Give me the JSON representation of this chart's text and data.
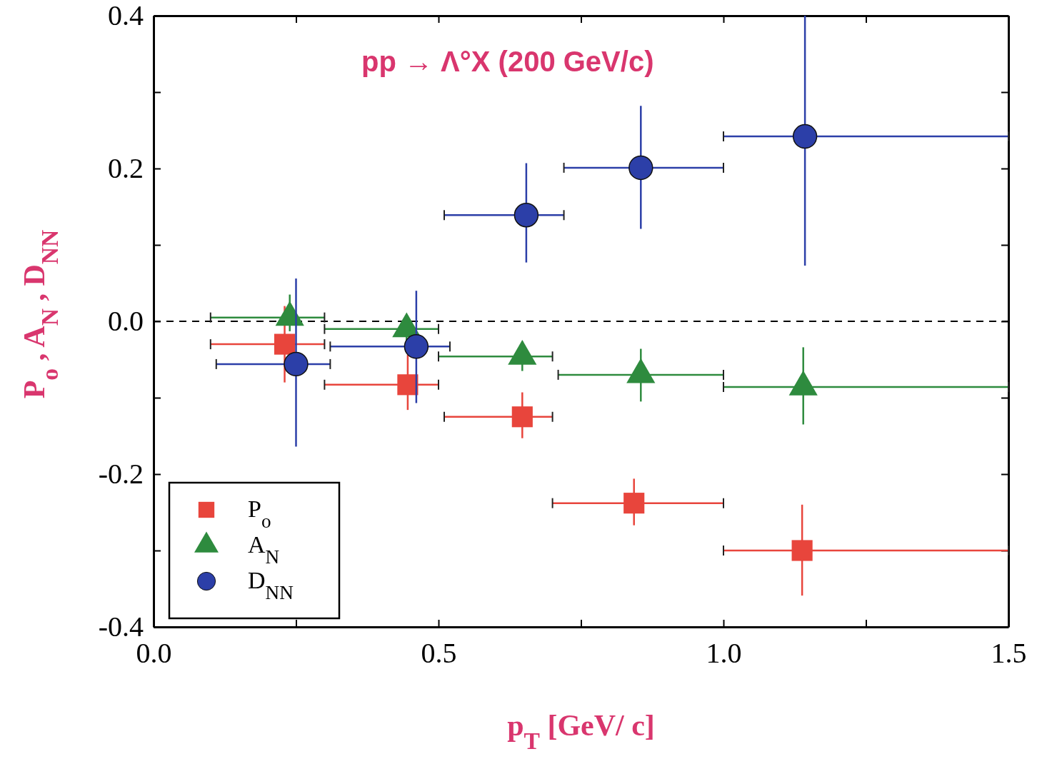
{
  "chart_data": {
    "type": "scatter",
    "title": "pp → Λ°X (200 GeV/c)",
    "xlabel": "p$_{T}$ [GeV/ c]",
    "ylabel": "P$_{o}$ , A$_{N}$ , D$_{NN}$",
    "xlim": [
      0,
      1.5
    ],
    "ylim": [
      -0.4,
      0.4
    ],
    "xticks": [
      {
        "value": 0,
        "label": "0.0"
      },
      {
        "value": 0.25,
        "label": null
      },
      {
        "value": 0.5,
        "label": "0.5"
      },
      {
        "value": 0.75,
        "label": null
      },
      {
        "value": 1,
        "label": "1.0"
      },
      {
        "value": 1.25,
        "label": null
      },
      {
        "value": 1.5,
        "label": "1.5"
      }
    ],
    "yticks": [
      {
        "value": -0.4,
        "label": "-0.4"
      },
      {
        "value": -0.3,
        "label": null
      },
      {
        "value": -0.2,
        "label": "-0.2"
      },
      {
        "value": -0.1,
        "label": null
      },
      {
        "value": 0,
        "label": "0.0"
      },
      {
        "value": 0.1,
        "label": null
      },
      {
        "value": 0.2,
        "label": "0.2"
      },
      {
        "value": 0.3,
        "label": null
      },
      {
        "value": 0.4,
        "label": "0.4"
      }
    ],
    "legend": "bottom left",
    "ref_lines": [
      {
        "axis": "y",
        "value": 0,
        "line_style": "dashed",
        "color": "#000000"
      }
    ],
    "series": [
      {
        "name": "P$_{o}$",
        "color": "#e8453c",
        "marker": "square",
        "x": [
          0.23,
          0.446,
          0.647,
          0.843,
          1.138
        ],
        "values": [
          -0.03,
          -0.083,
          -0.125,
          -0.238,
          -0.3
        ],
        "errors": [
          [
            -0.08,
            0.02
          ],
          [
            -0.116,
            -0.044
          ],
          [
            -0.153,
            -0.093
          ],
          [
            -0.267,
            -0.206
          ],
          [
            -0.359,
            -0.24
          ]
        ],
        "xerrors": [
          [
            0.1,
            0.3
          ],
          [
            0.3,
            0.5
          ],
          [
            0.51,
            0.7
          ],
          [
            0.7,
            1.0
          ],
          [
            1.0,
            1.5
          ]
        ]
      },
      {
        "name": "A$_{N}$",
        "color": "#2e8b3e",
        "marker": "triangle",
        "x": [
          0.239,
          0.444,
          0.647,
          0.855,
          1.14
        ],
        "values": [
          0.005,
          -0.01,
          -0.046,
          -0.07,
          -0.086
        ],
        "errors": [
          [
            -0.013,
            0.035
          ],
          [
            -0.025,
            0.005
          ],
          [
            -0.065,
            -0.026
          ],
          [
            -0.105,
            -0.036
          ],
          [
            -0.135,
            -0.034
          ]
        ],
        "xerrors": [
          [
            0.1,
            0.3
          ],
          [
            0.3,
            0.5
          ],
          [
            0.5,
            0.7
          ],
          [
            0.71,
            1.0
          ],
          [
            1.0,
            1.5
          ]
        ]
      },
      {
        "name": "D$_{NN}$",
        "color": "#2c3fa8",
        "marker": "circle",
        "x": [
          0.25,
          0.461,
          0.654,
          0.855,
          1.143
        ],
        "values": [
          -0.056,
          -0.033,
          0.139,
          0.201,
          0.242
        ],
        "errors": [
          [
            -0.164,
            0.056
          ],
          [
            -0.107,
            0.04
          ],
          [
            0.077,
            0.207
          ],
          [
            0.121,
            0.282
          ],
          [
            0.073,
            0.4
          ]
        ],
        "xerrors": [
          [
            0.11,
            0.31
          ],
          [
            0.31,
            0.52
          ],
          [
            0.51,
            0.72
          ],
          [
            0.72,
            1.0
          ],
          [
            1.0,
            1.5
          ]
        ]
      }
    ]
  }
}
